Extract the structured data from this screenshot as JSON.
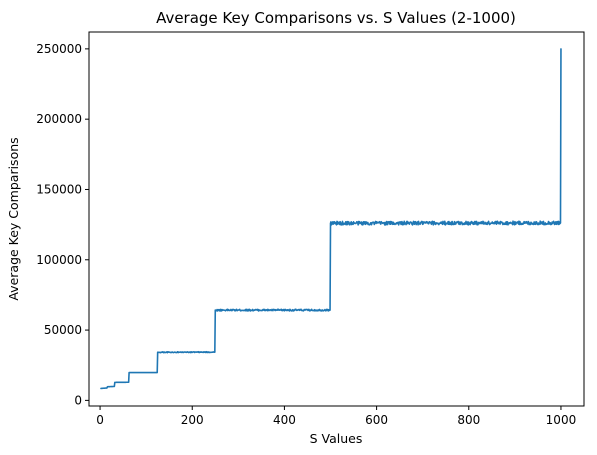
{
  "chart_data": {
    "type": "line",
    "title": "Average Key Comparisons vs. S Values (2-1000)",
    "xlabel": "S Values",
    "ylabel": "Average Key Comparisons",
    "xlim": [
      -24,
      1050
    ],
    "ylim": [
      -4000,
      262000
    ],
    "xticks": [
      0,
      200,
      400,
      600,
      800,
      1000
    ],
    "yticks": [
      0,
      50000,
      100000,
      150000,
      200000,
      250000
    ],
    "grid": false,
    "legend": "none",
    "series": [
      {
        "color": "#1f77b4",
        "x": [
          2,
          15,
          16,
          31,
          32,
          62,
          63,
          124,
          125,
          249,
          250,
          499,
          500,
          999,
          1000
        ],
        "values": [
          8500,
          8800,
          9700,
          9900,
          12800,
          12900,
          19800,
          19800,
          34200,
          34300,
          64200,
          64200,
          126000,
          126200,
          250000
        ],
        "noise_amplitude": [
          0,
          0,
          0,
          0,
          0,
          0,
          0,
          0,
          300,
          300,
          600,
          600,
          1300,
          1300,
          0
        ]
      }
    ]
  }
}
